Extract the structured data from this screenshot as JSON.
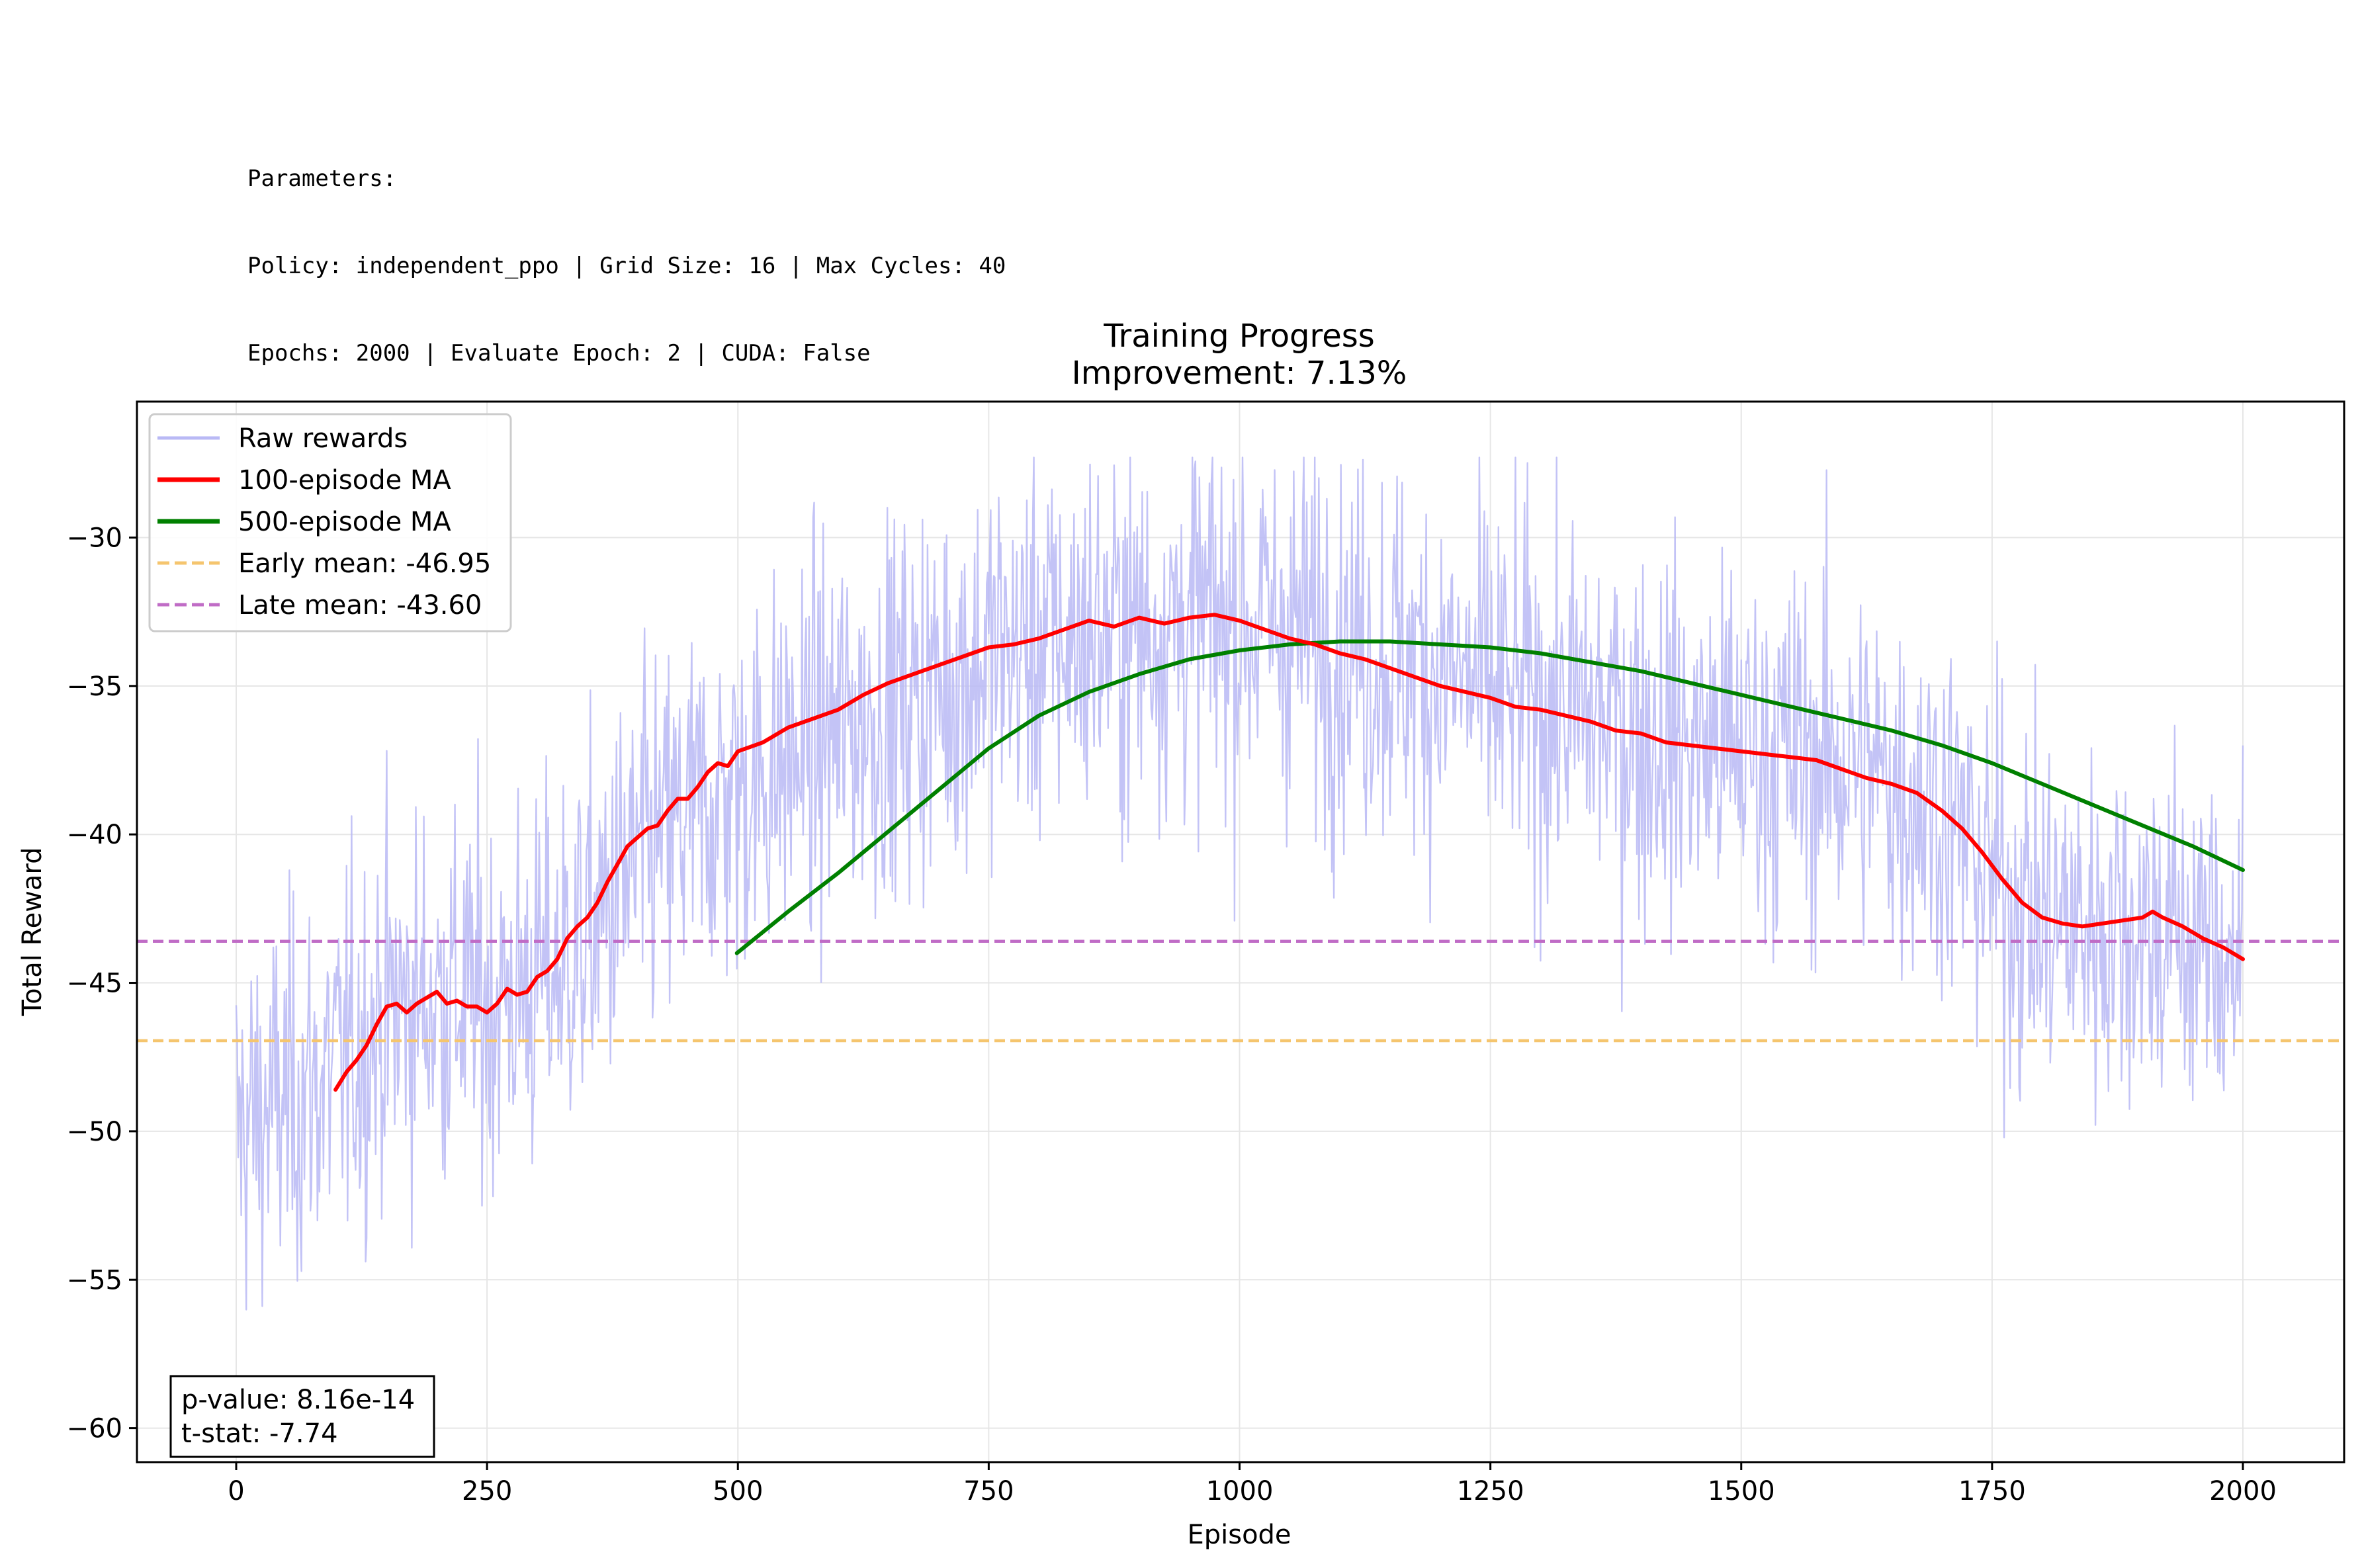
{
  "parameters": {
    "heading": "Parameters:",
    "line1": "Policy: independent_ppo | Grid Size: 16 | Max Cycles: 40",
    "line2": "Epochs: 2000 | Evaluate Epoch: 2 | CUDA: False"
  },
  "chart_data": {
    "type": "line",
    "title": "Training Progress",
    "subtitle": "Improvement: 7.13%",
    "xlabel": "Episode",
    "ylabel": "Total Reward",
    "xlim": [
      -100,
      2100
    ],
    "ylim": [
      -61.2,
      -26.6
    ],
    "xticks": [
      0,
      250,
      500,
      750,
      1000,
      1250,
      1500,
      1750,
      2000
    ],
    "xtick_labels": [
      "0",
      "250",
      "500",
      "750",
      "1000",
      "1250",
      "1500",
      "1750",
      "2000"
    ],
    "yticks": [
      -30,
      -35,
      -40,
      -45,
      -50,
      -55,
      -60
    ],
    "ytick_labels": [
      "−30",
      "−35",
      "−40",
      "−45",
      "−50",
      "−55",
      "−60"
    ],
    "grid": true,
    "legend_position": "top-left",
    "colors": {
      "raw": "#b9b9f5",
      "ma100": "#ff0000",
      "ma500": "#008000",
      "early": "#f5c56e",
      "late": "#c06cc6"
    },
    "series": [
      {
        "name": "Raw rewards",
        "style": "thin-noisy",
        "episodes": [
          0,
          2000
        ],
        "trend": [
          [
            0,
            -50
          ],
          [
            50,
            -49
          ],
          [
            100,
            -48
          ],
          [
            150,
            -46
          ],
          [
            200,
            -45.5
          ],
          [
            250,
            -45.6
          ],
          [
            300,
            -45
          ],
          [
            350,
            -43.5
          ],
          [
            400,
            -41
          ],
          [
            450,
            -39.5
          ],
          [
            500,
            -38.5
          ],
          [
            550,
            -37.5
          ],
          [
            600,
            -36.5
          ],
          [
            650,
            -35.8
          ],
          [
            700,
            -35
          ],
          [
            750,
            -34
          ],
          [
            800,
            -33.6
          ],
          [
            850,
            -33.3
          ],
          [
            900,
            -33
          ],
          [
            950,
            -32.8
          ],
          [
            1000,
            -32.8
          ],
          [
            1050,
            -33
          ],
          [
            1100,
            -33.5
          ],
          [
            1150,
            -34
          ],
          [
            1200,
            -34.5
          ],
          [
            1250,
            -35.2
          ],
          [
            1300,
            -35.6
          ],
          [
            1350,
            -36
          ],
          [
            1400,
            -36.5
          ],
          [
            1450,
            -37
          ],
          [
            1500,
            -37.1
          ],
          [
            1550,
            -37.3
          ],
          [
            1600,
            -37.5
          ],
          [
            1650,
            -38.2
          ],
          [
            1700,
            -39
          ],
          [
            1750,
            -41.5
          ],
          [
            1800,
            -43
          ],
          [
            1850,
            -43
          ],
          [
            1900,
            -43
          ],
          [
            1950,
            -43.5
          ],
          [
            2000,
            -44.2
          ]
        ],
        "spread": 3.2,
        "min": -58.5,
        "max": -27.3
      },
      {
        "name": "100-episode MA",
        "x": [
          99,
          110,
          120,
          130,
          140,
          150,
          160,
          170,
          180,
          190,
          200,
          210,
          220,
          230,
          240,
          250,
          260,
          270,
          280,
          290,
          300,
          310,
          320,
          330,
          340,
          350,
          360,
          370,
          380,
          390,
          400,
          410,
          420,
          430,
          440,
          450,
          460,
          470,
          480,
          490,
          500,
          525,
          550,
          575,
          600,
          625,
          650,
          675,
          700,
          725,
          750,
          775,
          800,
          825,
          850,
          875,
          900,
          925,
          950,
          975,
          1000,
          1025,
          1050,
          1075,
          1100,
          1125,
          1150,
          1175,
          1200,
          1225,
          1250,
          1275,
          1300,
          1325,
          1350,
          1375,
          1400,
          1425,
          1450,
          1475,
          1500,
          1525,
          1550,
          1575,
          1600,
          1625,
          1650,
          1675,
          1700,
          1720,
          1740,
          1760,
          1780,
          1800,
          1820,
          1840,
          1860,
          1880,
          1900,
          1910,
          1920,
          1940,
          1960,
          1980,
          2000
        ],
        "y": [
          -48.6,
          -48.0,
          -47.6,
          -47.1,
          -46.4,
          -45.8,
          -45.7,
          -46.0,
          -45.7,
          -45.5,
          -45.3,
          -45.7,
          -45.6,
          -45.8,
          -45.8,
          -46.0,
          -45.7,
          -45.2,
          -45.4,
          -45.3,
          -44.8,
          -44.6,
          -44.2,
          -43.5,
          -43.1,
          -42.8,
          -42.3,
          -41.6,
          -41.0,
          -40.4,
          -40.1,
          -39.8,
          -39.7,
          -39.2,
          -38.8,
          -38.8,
          -38.4,
          -37.9,
          -37.6,
          -37.7,
          -37.2,
          -36.9,
          -36.4,
          -36.1,
          -35.8,
          -35.3,
          -34.9,
          -34.6,
          -34.3,
          -34.0,
          -33.7,
          -33.6,
          -33.4,
          -33.1,
          -32.8,
          -33.0,
          -32.7,
          -32.9,
          -32.7,
          -32.6,
          -32.8,
          -33.1,
          -33.4,
          -33.6,
          -33.9,
          -34.1,
          -34.4,
          -34.7,
          -35.0,
          -35.2,
          -35.4,
          -35.7,
          -35.8,
          -36.0,
          -36.2,
          -36.5,
          -36.6,
          -36.9,
          -37.0,
          -37.1,
          -37.2,
          -37.3,
          -37.4,
          -37.5,
          -37.8,
          -38.1,
          -38.3,
          -38.6,
          -39.2,
          -39.8,
          -40.6,
          -41.5,
          -42.3,
          -42.8,
          -43.0,
          -43.1,
          -43.0,
          -42.9,
          -42.8,
          -42.6,
          -42.8,
          -43.1,
          -43.5,
          -43.8,
          -44.2
        ]
      },
      {
        "name": "500-episode MA",
        "x": [
          499,
          550,
          600,
          650,
          700,
          750,
          800,
          850,
          900,
          950,
          1000,
          1050,
          1100,
          1150,
          1200,
          1250,
          1300,
          1350,
          1400,
          1450,
          1500,
          1550,
          1600,
          1650,
          1700,
          1750,
          1800,
          1850,
          1900,
          1950,
          2000
        ],
        "y": [
          -44.0,
          -42.6,
          -41.3,
          -39.9,
          -38.5,
          -37.1,
          -36.0,
          -35.2,
          -34.6,
          -34.1,
          -33.8,
          -33.6,
          -33.5,
          -33.5,
          -33.6,
          -33.7,
          -33.9,
          -34.2,
          -34.5,
          -34.9,
          -35.3,
          -35.7,
          -36.1,
          -36.5,
          -37.0,
          -37.6,
          -38.3,
          -39.0,
          -39.7,
          -40.4,
          -41.2
        ]
      },
      {
        "name": "Early mean: -46.95",
        "value": -46.95
      },
      {
        "name": "Late mean: -43.60",
        "value": -43.6
      }
    ],
    "stats_box": {
      "line1": "p-value: 8.16e-14",
      "line2": "t-stat: -7.74"
    }
  }
}
